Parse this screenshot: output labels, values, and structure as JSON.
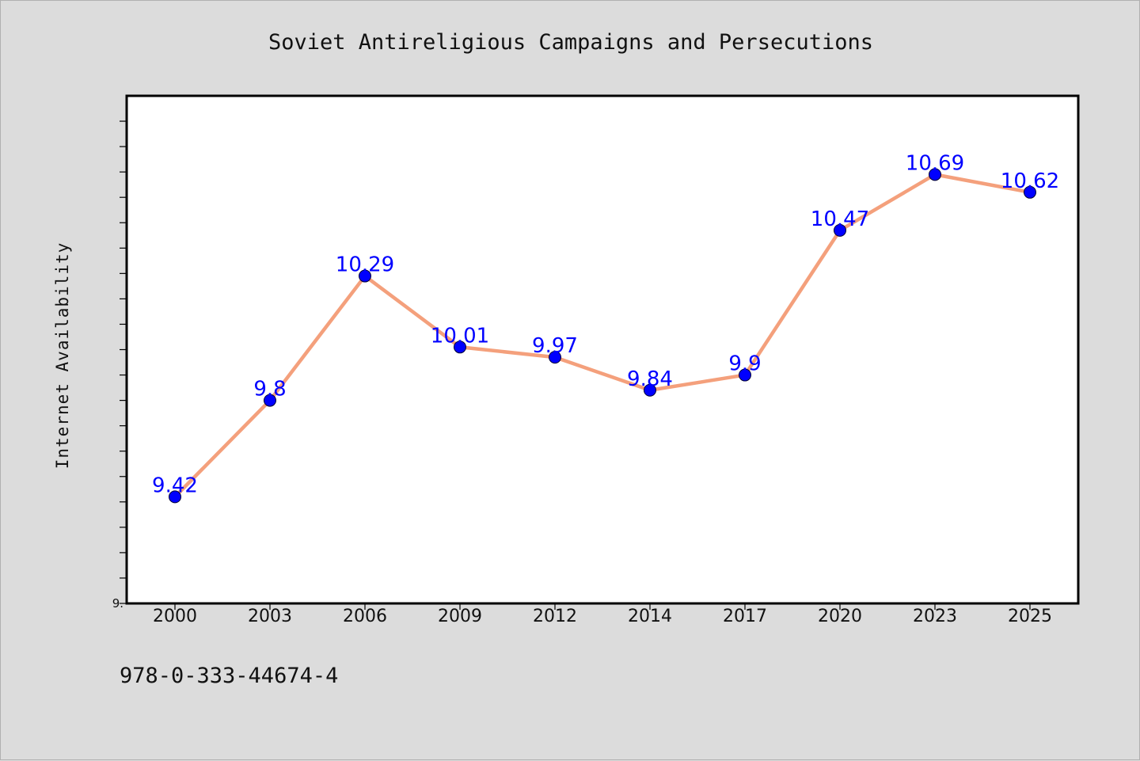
{
  "chart_data": {
    "type": "line",
    "title": "Soviet Antireligious Campaigns and Persecutions",
    "xlabel": "",
    "ylabel": "Internet Availability",
    "categories": [
      "2000",
      "2003",
      "2006",
      "2009",
      "2012",
      "2014",
      "2017",
      "2020",
      "2023",
      "2025"
    ],
    "series": [
      {
        "values": [
          9.42,
          9.8,
          10.29,
          10.01,
          9.97,
          9.84,
          9.9,
          10.47,
          10.69,
          10.62
        ],
        "labels": [
          "9.42",
          "9.8",
          "10.29",
          "10.01",
          "9.97",
          "9.84",
          "9.9",
          "10.47",
          "10.69",
          "10.62"
        ],
        "line_color": "#f4a07c",
        "marker_color": "#0000ff"
      }
    ],
    "y_tick_labels": [
      "9."
    ],
    "ylim": [
      9.0,
      11.0
    ],
    "y_minor_tick_step": 0.1,
    "grid": false,
    "legend": "none"
  },
  "footer": {
    "code": "978-0-333-44674-4"
  },
  "colors": {
    "background": "#dcdcdc",
    "plot_background": "#ffffff",
    "axis": "#000000"
  }
}
